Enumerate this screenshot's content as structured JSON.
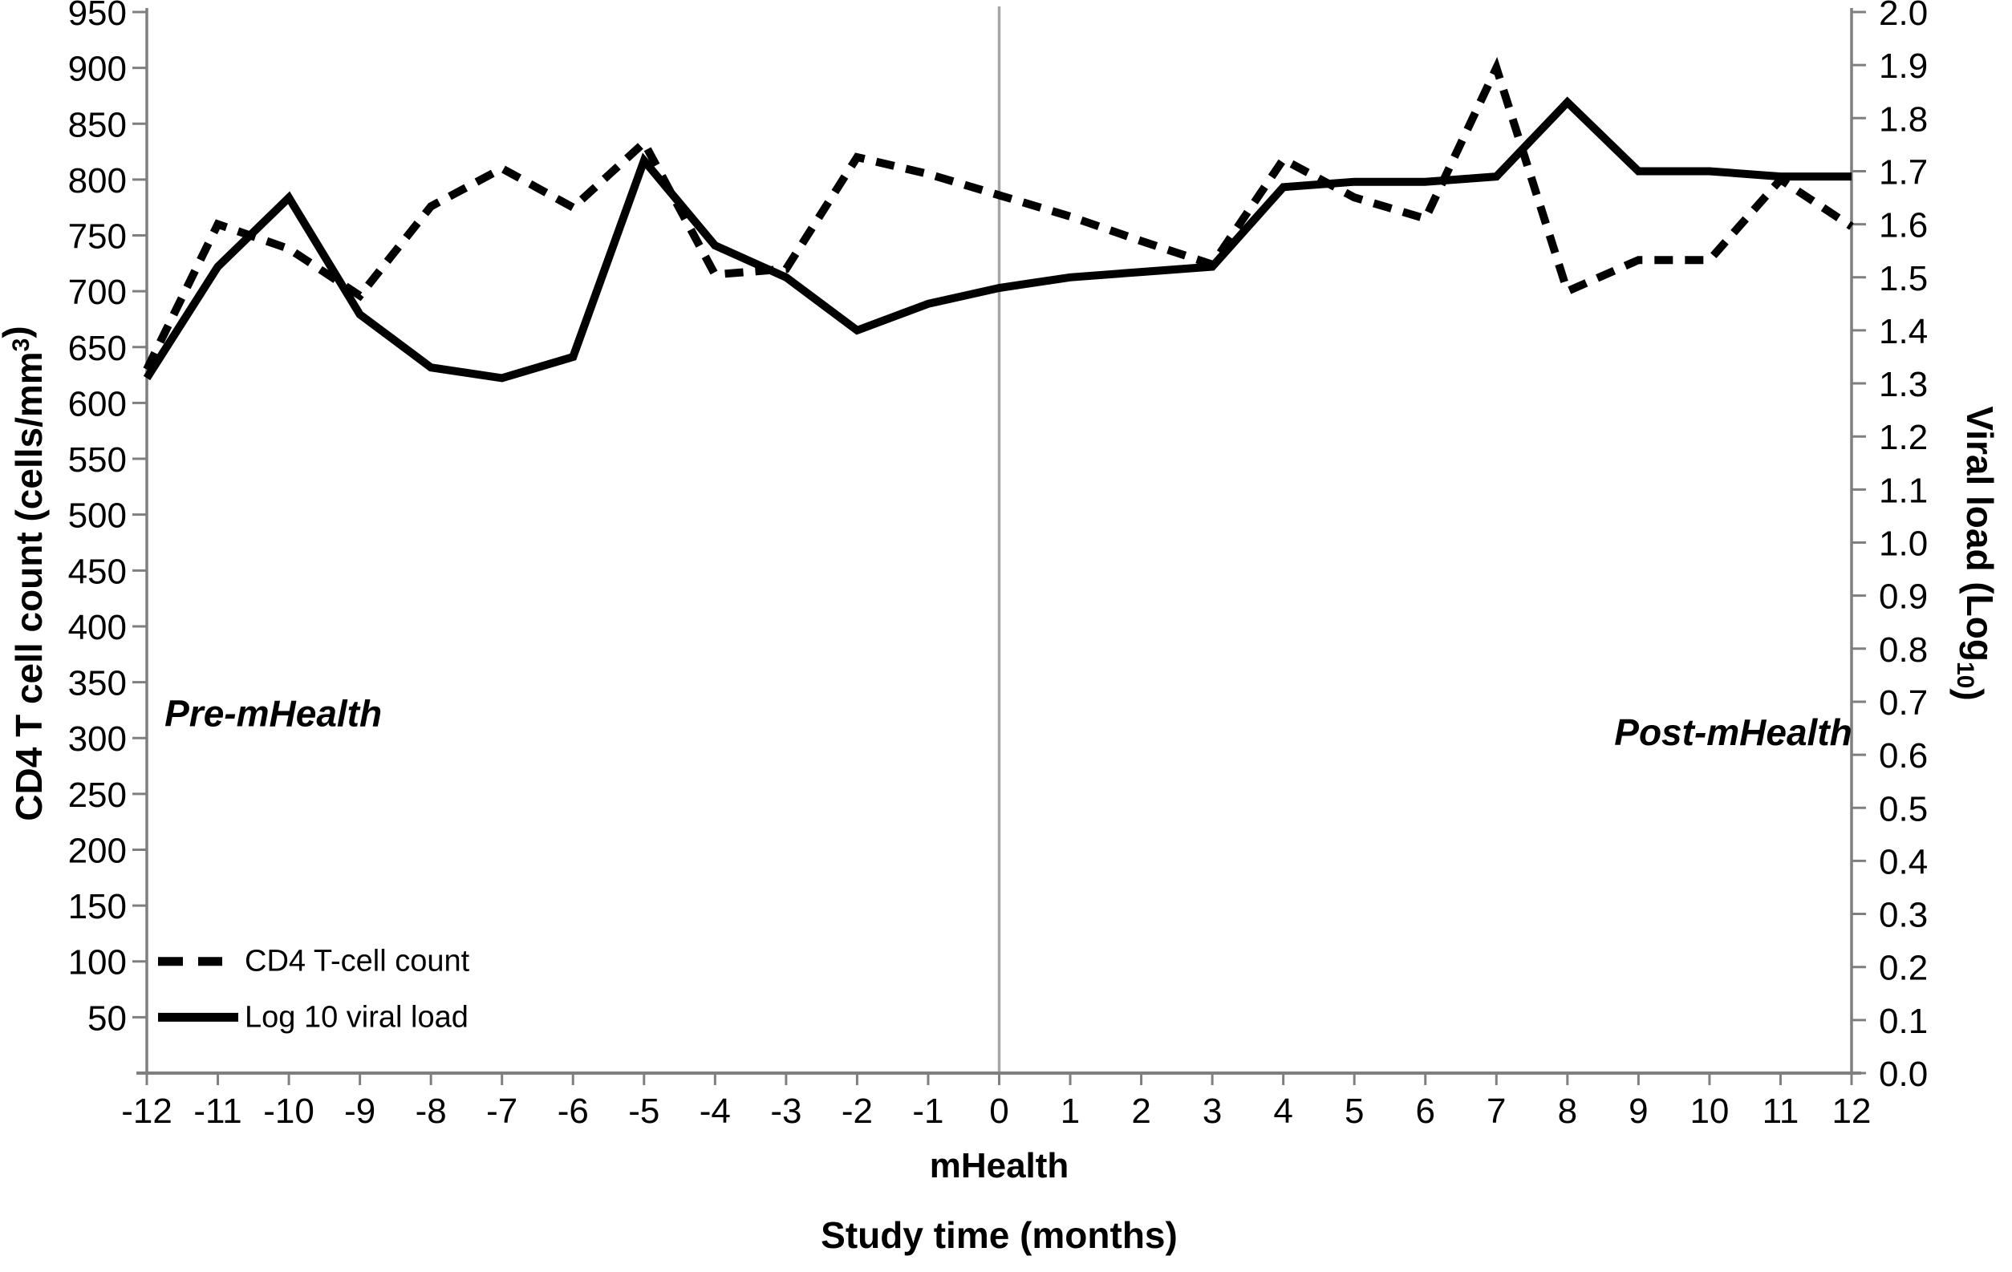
{
  "chart_data": {
    "type": "line",
    "title": "",
    "xlabel": "Study time (months)",
    "x_sublabel": "mHealth",
    "x": [
      -12,
      -11,
      -10,
      -9,
      -8,
      -7,
      -6,
      -5,
      -4,
      -3,
      -2,
      -1,
      0,
      1,
      2,
      3,
      4,
      5,
      6,
      7,
      8,
      9,
      10,
      11,
      12
    ],
    "x_tick_labels": [
      "-12",
      "-11",
      "-10",
      "-9",
      "-8",
      "-7",
      "-6",
      "-5",
      "-4",
      "-3",
      "-2",
      "-1",
      "0",
      "1",
      "2",
      "3",
      "4",
      "5",
      "6",
      "7",
      "8",
      "9",
      "10",
      "11",
      "12"
    ],
    "series": [
      {
        "name": "CD4 T-cell count",
        "axis": "left",
        "style": "dashed",
        "values": [
          630,
          760,
          738,
          696,
          776,
          810,
          775,
          833,
          715,
          720,
          820,
          805,
          786,
          767,
          745,
          724,
          818,
          784,
          765,
          900,
          700,
          728,
          728,
          800,
          758
        ]
      },
      {
        "name": "Log 10 viral load",
        "axis": "right",
        "style": "solid",
        "values": [
          1.31,
          1.52,
          1.65,
          1.43,
          1.33,
          1.31,
          1.35,
          1.72,
          1.56,
          1.5,
          1.4,
          1.45,
          1.48,
          1.5,
          1.51,
          1.52,
          1.67,
          1.68,
          1.68,
          1.69,
          1.83,
          1.7,
          1.7,
          1.69,
          1.69
        ]
      }
    ],
    "y_left": {
      "label": "CD4 T cell count (cells/mm³)",
      "label_parts": [
        {
          "t": "CD4 T cell count (cells/mm"
        },
        {
          "t": "3",
          "script": "sup"
        },
        {
          "t": ")"
        }
      ],
      "min": 0,
      "max": 950,
      "tick_labels": [
        "950",
        "900",
        "850",
        "800",
        "750",
        "700",
        "650",
        "600",
        "550",
        "500",
        "450",
        "400",
        "350",
        "300",
        "250",
        "200",
        "150",
        "100",
        "50"
      ],
      "tick_values": [
        950,
        900,
        850,
        800,
        750,
        700,
        650,
        600,
        550,
        500,
        450,
        400,
        350,
        300,
        250,
        200,
        150,
        100,
        50
      ]
    },
    "y_right": {
      "label": "Viral load (Log₁₀)",
      "label_parts": [
        {
          "t": "Viral load (Log"
        },
        {
          "t": "10",
          "script": "sub"
        },
        {
          "t": ")"
        }
      ],
      "min": 0,
      "max": 2.0,
      "tick_labels": [
        "2.0",
        "1.9",
        "1.8",
        "1.7",
        "1.6",
        "1.5",
        "1.4",
        "1.3",
        "1.2",
        "1.1",
        "1.0",
        "0.9",
        "0.8",
        "0.7",
        "0.6",
        "0.5",
        "0.4",
        "0.3",
        "0.2",
        "0.1",
        "0.0"
      ],
      "tick_values": [
        2.0,
        1.9,
        1.8,
        1.7,
        1.6,
        1.5,
        1.4,
        1.3,
        1.2,
        1.1,
        1.0,
        0.9,
        0.8,
        0.7,
        0.6,
        0.5,
        0.4,
        0.3,
        0.2,
        0.1,
        0.0
      ]
    },
    "vline": {
      "x_month": 0,
      "color": "#a6a6a6"
    },
    "annotations": [
      {
        "text": "Pre-mHealth",
        "x_month": -11.75,
        "y_left": 322,
        "anchor": "start"
      },
      {
        "text": "Post-mHealth",
        "x_month": 8.66,
        "y_left": 305,
        "anchor": "start"
      }
    ],
    "legend": {
      "position": "inside-bottom-left",
      "entries": [
        {
          "label": "CD4 T-cell count",
          "style": "dashed"
        },
        {
          "label": "Log 10 viral load",
          "style": "solid"
        }
      ]
    },
    "colors": {
      "line": "#000000",
      "axis": "#7f7f7f",
      "text": "#000000",
      "background": "#ffffff"
    },
    "grid": false,
    "legend_position": "bottom-left",
    "ylim_left": [
      0,
      950
    ],
    "ylim_right": [
      0.0,
      2.0
    ],
    "xlim": [
      -12,
      12
    ]
  }
}
